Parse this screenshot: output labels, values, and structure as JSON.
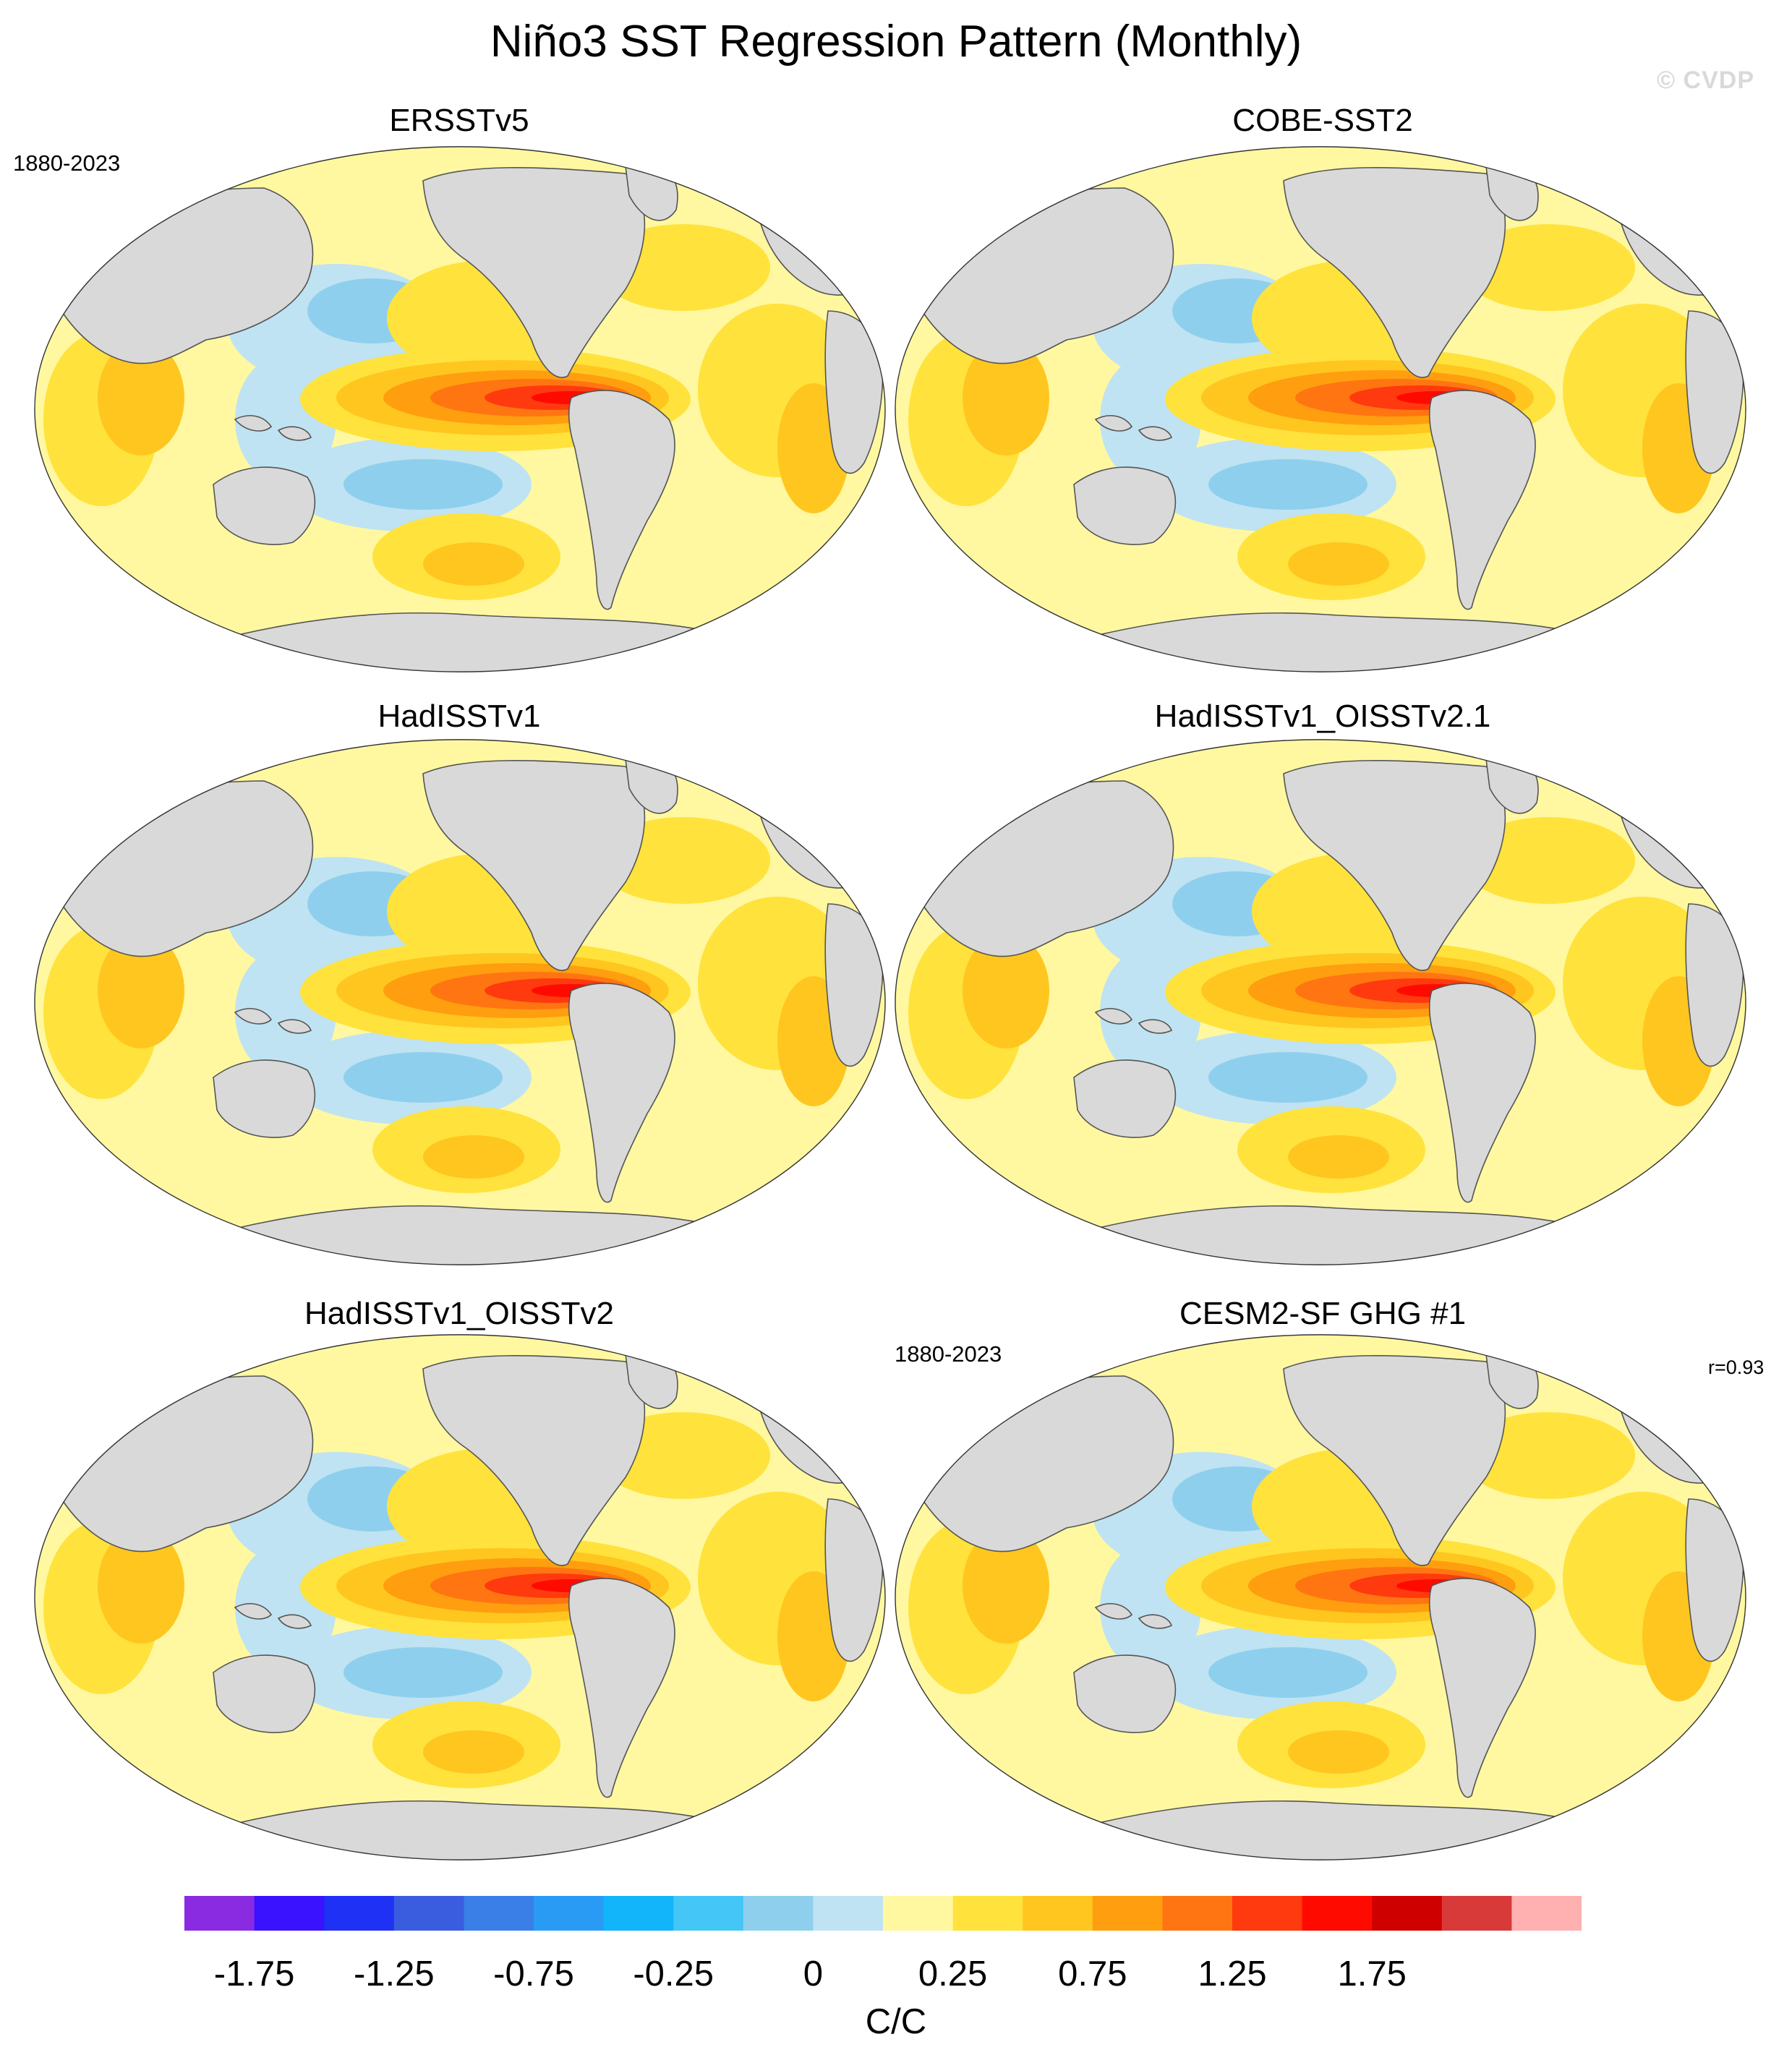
{
  "title": "Niño3 SST Regression Pattern (Monthly)",
  "watermark": "© CVDP",
  "panels": [
    {
      "title": "ERSSTv5",
      "period": "1880-2023",
      "corr": ""
    },
    {
      "title": "COBE-SST2",
      "period": "",
      "corr": ""
    },
    {
      "title": "HadISSTv1",
      "period": "",
      "corr": ""
    },
    {
      "title": "HadISSTv1_OISSTv2.1",
      "period": "",
      "corr": ""
    },
    {
      "title": "HadISSTv1_OISSTv2",
      "period": "",
      "corr": ""
    },
    {
      "title": "CESM2-SF GHG #1",
      "period": "1880-2023",
      "corr": "r=0.93"
    }
  ],
  "colorbar": {
    "colors": [
      "#8a2be2",
      "#3a12ff",
      "#1f31f5",
      "#3a5de0",
      "#3a7fe8",
      "#2a9bf5",
      "#12b4fa",
      "#44c6f7",
      "#8fcfee",
      "#bfe3f2",
      "#fff8a0",
      "#ffe23c",
      "#ffc61f",
      "#ff9e0e",
      "#ff7512",
      "#ff3a0e",
      "#ff0a00",
      "#cf0000",
      "#d83a3a",
      "#ffb0b0"
    ],
    "labels": [
      "-1.75",
      "-1.25",
      "-0.75",
      "-0.25",
      "0",
      "0.25",
      "0.75",
      "1.25",
      "1.75"
    ],
    "units": "C/C"
  },
  "map_colors": {
    "ocean_base": "#fff8a0",
    "land": "#d9d9d9",
    "coast": "#555555"
  }
}
